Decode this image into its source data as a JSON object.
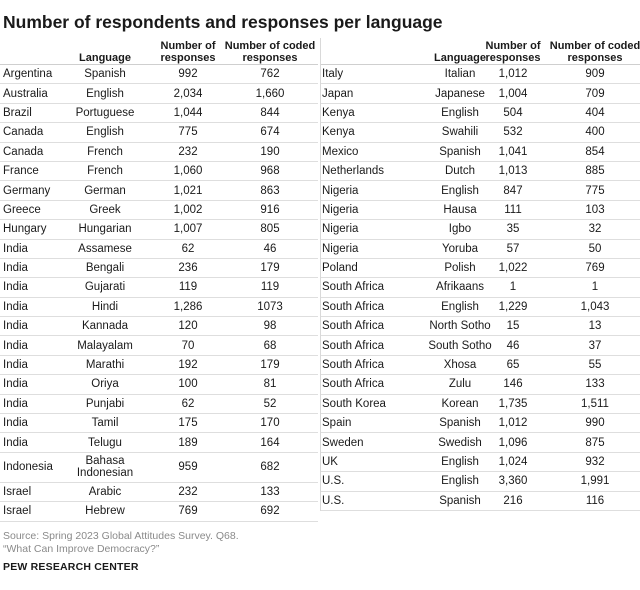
{
  "title": "Number of respondents and responses per language",
  "headers": {
    "language": "Language",
    "respondents": [
      "Number of",
      "responses"
    ],
    "coded": [
      "Number of coded",
      "responses"
    ]
  },
  "left_rows": [
    {
      "country": "Argentina",
      "language": "Spanish",
      "respondents": "992",
      "coded": "762"
    },
    {
      "country": "Australia",
      "language": "English",
      "respondents": "2,034",
      "coded": "1,660"
    },
    {
      "country": "Brazil",
      "language": "Portuguese",
      "respondents": "1,044",
      "coded": "844"
    },
    {
      "country": "Canada",
      "language": "English",
      "respondents": "775",
      "coded": "674"
    },
    {
      "country": "Canada",
      "language": "French",
      "respondents": "232",
      "coded": "190"
    },
    {
      "country": "France",
      "language": "French",
      "respondents": "1,060",
      "coded": "968"
    },
    {
      "country": "Germany",
      "language": "German",
      "respondents": "1,021",
      "coded": "863"
    },
    {
      "country": "Greece",
      "language": "Greek",
      "respondents": "1,002",
      "coded": "916"
    },
    {
      "country": "Hungary",
      "language": "Hungarian",
      "respondents": "1,007",
      "coded": "805"
    },
    {
      "country": "India",
      "language": "Assamese",
      "respondents": "62",
      "coded": "46"
    },
    {
      "country": "India",
      "language": "Bengali",
      "respondents": "236",
      "coded": "179"
    },
    {
      "country": "India",
      "language": "Gujarati",
      "respondents": "119",
      "coded": "119"
    },
    {
      "country": "India",
      "language": "Hindi",
      "respondents": "1,286",
      "coded": "1073"
    },
    {
      "country": "India",
      "language": "Kannada",
      "respondents": "120",
      "coded": "98"
    },
    {
      "country": "India",
      "language": "Malayalam",
      "respondents": "70",
      "coded": "68"
    },
    {
      "country": "India",
      "language": "Marathi",
      "respondents": "192",
      "coded": "179"
    },
    {
      "country": "India",
      "language": "Oriya",
      "respondents": "100",
      "coded": "81"
    },
    {
      "country": "India",
      "language": "Punjabi",
      "respondents": "62",
      "coded": "52"
    },
    {
      "country": "India",
      "language": "Tamil",
      "respondents": "175",
      "coded": "170"
    },
    {
      "country": "India",
      "language": "Telugu",
      "respondents": "189",
      "coded": "164"
    },
    {
      "country": "Indonesia",
      "language": "Bahasa Indonesian",
      "respondents": "959",
      "coded": "682"
    },
    {
      "country": "Israel",
      "language": "Arabic",
      "respondents": "232",
      "coded": "133"
    },
    {
      "country": "Israel",
      "language": "Hebrew",
      "respondents": "769",
      "coded": "692"
    }
  ],
  "right_rows": [
    {
      "country": "Italy",
      "language": "Italian",
      "respondents": "1,012",
      "coded": "909"
    },
    {
      "country": "Japan",
      "language": "Japanese",
      "respondents": "1,004",
      "coded": "709"
    },
    {
      "country": "Kenya",
      "language": "English",
      "respondents": "504",
      "coded": "404"
    },
    {
      "country": "Kenya",
      "language": "Swahili",
      "respondents": "532",
      "coded": "400"
    },
    {
      "country": "Mexico",
      "language": "Spanish",
      "respondents": "1,041",
      "coded": "854"
    },
    {
      "country": "Netherlands",
      "language": "Dutch",
      "respondents": "1,013",
      "coded": "885"
    },
    {
      "country": "Nigeria",
      "language": "English",
      "respondents": "847",
      "coded": "775"
    },
    {
      "country": "Nigeria",
      "language": "Hausa",
      "respondents": "111",
      "coded": "103"
    },
    {
      "country": "Nigeria",
      "language": "Igbo",
      "respondents": "35",
      "coded": "32"
    },
    {
      "country": "Nigeria",
      "language": "Yoruba",
      "respondents": "57",
      "coded": "50"
    },
    {
      "country": "Poland",
      "language": "Polish",
      "respondents": "1,022",
      "coded": "769"
    },
    {
      "country": "South Africa",
      "language": "Afrikaans",
      "respondents": "1",
      "coded": "1"
    },
    {
      "country": "South Africa",
      "language": "English",
      "respondents": "1,229",
      "coded": "1,043"
    },
    {
      "country": "South Africa",
      "language": "North Sotho",
      "respondents": "15",
      "coded": "13"
    },
    {
      "country": "South Africa",
      "language": "South Sotho",
      "respondents": "46",
      "coded": "37"
    },
    {
      "country": "South Africa",
      "language": "Xhosa",
      "respondents": "65",
      "coded": "55"
    },
    {
      "country": "South Africa",
      "language": "Zulu",
      "respondents": "146",
      "coded": "133"
    },
    {
      "country": "South Korea",
      "language": "Korean",
      "respondents": "1,735",
      "coded": "1,511"
    },
    {
      "country": "Spain",
      "language": "Spanish",
      "respondents": "1,012",
      "coded": "990"
    },
    {
      "country": "Sweden",
      "language": "Swedish",
      "respondents": "1,096",
      "coded": "875"
    },
    {
      "country": "UK",
      "language": "English",
      "respondents": "1,024",
      "coded": "932"
    },
    {
      "country": "U.S.",
      "language": "English",
      "respondents": "3,360",
      "coded": "1,991"
    },
    {
      "country": "U.S.",
      "language": "Spanish",
      "respondents": "216",
      "coded": "116"
    }
  ],
  "footer": {
    "source": "Source: Spring 2023 Global Attitudes Survey. Q68.",
    "question": "“What Can Improve Democracy?”",
    "brand": "PEW RESEARCH CENTER"
  }
}
